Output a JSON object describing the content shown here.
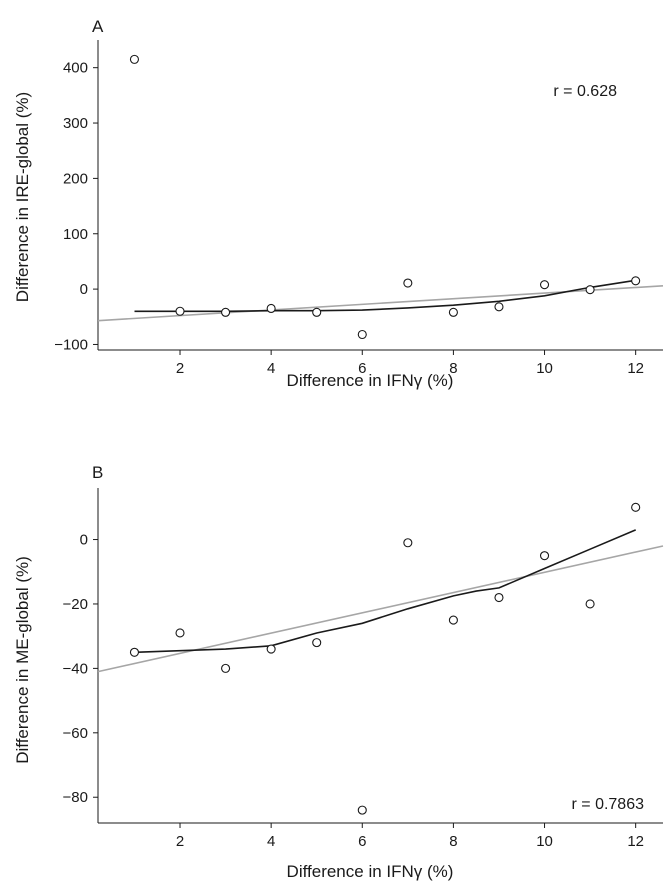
{
  "chart_data": [
    {
      "type": "scatter",
      "panel_label": "A",
      "xlabel": "Difference in IFNγ (%)",
      "ylabel": "Difference in IRE-global (%)",
      "xlim": [
        0.2,
        12.6
      ],
      "ylim": [
        -110,
        450
      ],
      "xticks": [
        2,
        4,
        6,
        8,
        10,
        12
      ],
      "yticks": [
        -100,
        0,
        100,
        200,
        300,
        400
      ],
      "annotation": "r = 0.628",
      "points": [
        {
          "x": 1,
          "y": 415
        },
        {
          "x": 2,
          "y": -40
        },
        {
          "x": 3,
          "y": -42
        },
        {
          "x": 4,
          "y": -35
        },
        {
          "x": 5,
          "y": -42
        },
        {
          "x": 6,
          "y": -82
        },
        {
          "x": 7,
          "y": 11
        },
        {
          "x": 8,
          "y": -42
        },
        {
          "x": 9,
          "y": -32
        },
        {
          "x": 10,
          "y": 8
        },
        {
          "x": 11,
          "y": -1
        },
        {
          "x": 12,
          "y": 15
        }
      ],
      "smooth_line": {
        "color": "#1a1a1a",
        "x": [
          1,
          2,
          3,
          4,
          5,
          6,
          7,
          8,
          9,
          10,
          11,
          12
        ],
        "y": [
          -40,
          -40,
          -40,
          -39,
          -39,
          -38,
          -34,
          -29,
          -22,
          -12,
          3,
          16
        ]
      },
      "regression_line": {
        "color": "#a6a6a6",
        "x": [
          0.2,
          12.6
        ],
        "y": [
          -57,
          6
        ]
      }
    },
    {
      "type": "scatter",
      "panel_label": "B",
      "xlabel": "Difference in IFNγ (%)",
      "ylabel": "Difference in ME-global (%)",
      "xlim": [
        0.2,
        12.6
      ],
      "ylim": [
        -88,
        16
      ],
      "xticks": [
        2,
        4,
        6,
        8,
        10,
        12
      ],
      "yticks": [
        -80,
        -60,
        -40,
        -20,
        0
      ],
      "annotation": "r = 0.7863",
      "points": [
        {
          "x": 1,
          "y": -35
        },
        {
          "x": 2,
          "y": -29
        },
        {
          "x": 3,
          "y": -40
        },
        {
          "x": 4,
          "y": -34
        },
        {
          "x": 5,
          "y": -32
        },
        {
          "x": 6,
          "y": -84
        },
        {
          "x": 7,
          "y": -1
        },
        {
          "x": 8,
          "y": -25
        },
        {
          "x": 9,
          "y": -18
        },
        {
          "x": 10,
          "y": -5
        },
        {
          "x": 11,
          "y": -20
        },
        {
          "x": 12,
          "y": 10
        }
      ],
      "smooth_line": {
        "color": "#1a1a1a",
        "x": [
          1,
          2,
          3,
          4,
          5,
          6,
          7,
          8,
          8.5,
          9,
          10,
          11,
          12
        ],
        "y": [
          -35,
          -34.5,
          -34,
          -33,
          -29,
          -26,
          -21.5,
          -17.5,
          -16,
          -15,
          -9,
          -3,
          3
        ]
      },
      "regression_line": {
        "color": "#a6a6a6",
        "x": [
          0.2,
          12.6
        ],
        "y": [
          -41,
          -2
        ]
      }
    }
  ]
}
